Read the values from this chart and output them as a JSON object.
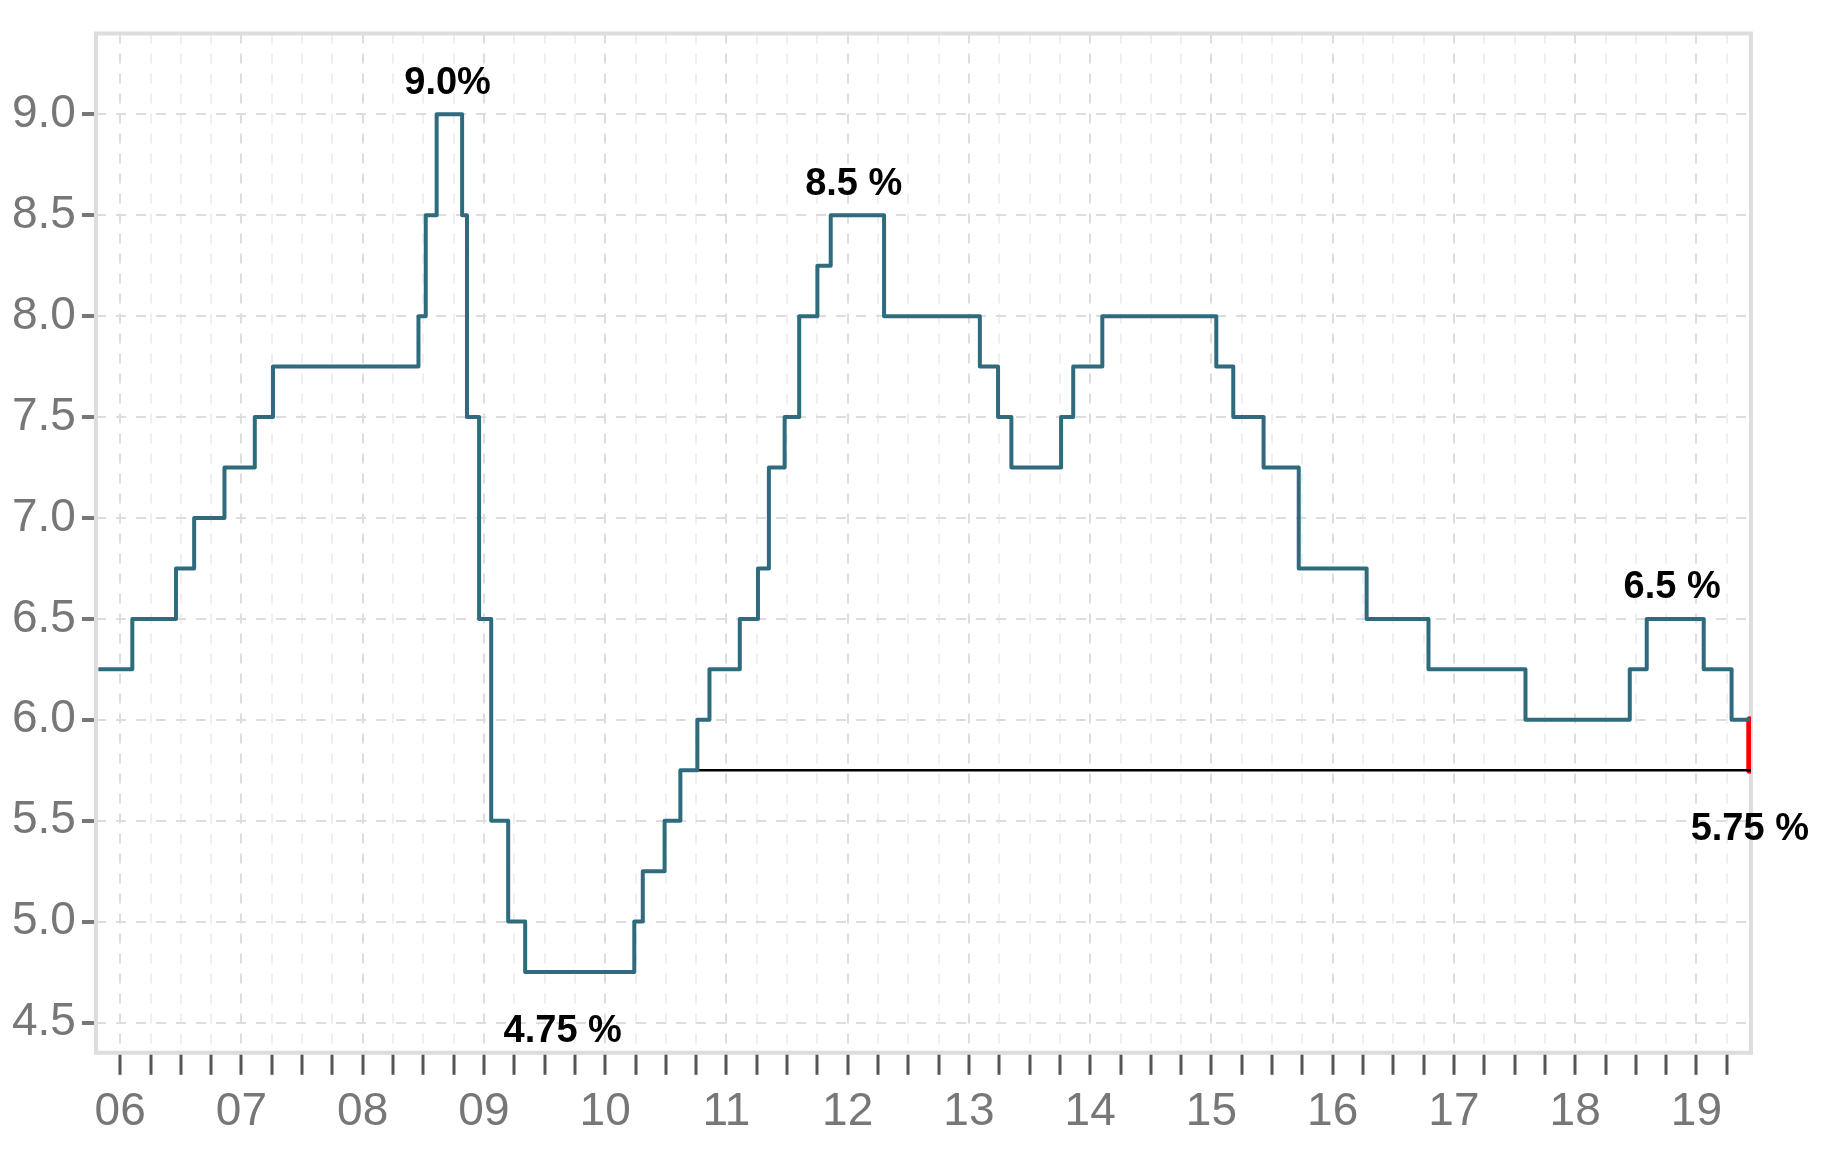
{
  "chart_data": {
    "type": "step",
    "series": [
      {
        "type": "step",
        "color": "#2e6b7d",
        "x": [
          2005.82,
          2006.1,
          2006.46,
          2006.61,
          2006.86,
          2007.11,
          2007.26,
          2008.46,
          2008.52,
          2008.61,
          2008.82,
          2008.86,
          2008.96,
          2009.06,
          2009.2,
          2009.34,
          2010.24,
          2010.31,
          2010.49,
          2010.62,
          2010.76,
          2010.86,
          2011.11,
          2011.26,
          2011.35,
          2011.48,
          2011.6,
          2011.75,
          2011.86,
          2012.3,
          2013.09,
          2013.24,
          2013.35,
          2013.76,
          2013.86,
          2014.1,
          2015.04,
          2015.18,
          2015.43,
          2015.72,
          2016.28,
          2016.79,
          2017.59,
          2018.45,
          2018.59,
          2019.06,
          2019.29,
          2019.44
        ],
        "values": [
          6.25,
          6.5,
          6.75,
          7.0,
          7.25,
          7.5,
          7.75,
          8.0,
          8.5,
          9.0,
          8.5,
          7.5,
          6.5,
          5.5,
          5.0,
          4.75,
          5.0,
          5.25,
          5.5,
          5.75,
          6.0,
          6.25,
          6.5,
          6.75,
          7.25,
          7.5,
          8.0,
          8.25,
          8.5,
          8.0,
          7.75,
          7.5,
          7.25,
          7.5,
          7.75,
          8.0,
          7.75,
          7.5,
          7.25,
          6.75,
          6.5,
          6.25,
          6.0,
          6.25,
          6.5,
          6.25,
          6.0,
          6.0
        ]
      },
      {
        "type": "line",
        "color": "#000000",
        "x": [
          2010.76,
          2019.45
        ],
        "values": [
          5.75,
          5.75
        ]
      },
      {
        "type": "line",
        "color": "#ff0000",
        "x": [
          2019.44,
          2019.44
        ],
        "values": [
          6.0,
          5.75
        ]
      }
    ],
    "xlim": [
      2005.8,
      2019.45
    ],
    "xticks": [
      {
        "value": 2006,
        "label": "06"
      },
      {
        "value": 2006.25,
        "label": null
      },
      {
        "value": 2006.5,
        "label": null
      },
      {
        "value": 2006.75,
        "label": null
      },
      {
        "value": 2007,
        "label": "07"
      },
      {
        "value": 2007.25,
        "label": null
      },
      {
        "value": 2007.5,
        "label": null
      },
      {
        "value": 2007.75,
        "label": null
      },
      {
        "value": 2008,
        "label": "08"
      },
      {
        "value": 2008.25,
        "label": null
      },
      {
        "value": 2008.5,
        "label": null
      },
      {
        "value": 2008.75,
        "label": null
      },
      {
        "value": 2009,
        "label": "09"
      },
      {
        "value": 2009.25,
        "label": null
      },
      {
        "value": 2009.5,
        "label": null
      },
      {
        "value": 2009.75,
        "label": null
      },
      {
        "value": 2010,
        "label": "10"
      },
      {
        "value": 2010.25,
        "label": null
      },
      {
        "value": 2010.5,
        "label": null
      },
      {
        "value": 2010.75,
        "label": null
      },
      {
        "value": 2011,
        "label": "11"
      },
      {
        "value": 2011.25,
        "label": null
      },
      {
        "value": 2011.5,
        "label": null
      },
      {
        "value": 2011.75,
        "label": null
      },
      {
        "value": 2012,
        "label": "12"
      },
      {
        "value": 2012.25,
        "label": null
      },
      {
        "value": 2012.5,
        "label": null
      },
      {
        "value": 2012.75,
        "label": null
      },
      {
        "value": 2013,
        "label": "13"
      },
      {
        "value": 2013.25,
        "label": null
      },
      {
        "value": 2013.5,
        "label": null
      },
      {
        "value": 2013.75,
        "label": null
      },
      {
        "value": 2014,
        "label": "14"
      },
      {
        "value": 2014.25,
        "label": null
      },
      {
        "value": 2014.5,
        "label": null
      },
      {
        "value": 2014.75,
        "label": null
      },
      {
        "value": 2015,
        "label": "15"
      },
      {
        "value": 2015.25,
        "label": null
      },
      {
        "value": 2015.5,
        "label": null
      },
      {
        "value": 2015.75,
        "label": null
      },
      {
        "value": 2016,
        "label": "16"
      },
      {
        "value": 2016.25,
        "label": null
      },
      {
        "value": 2016.5,
        "label": null
      },
      {
        "value": 2016.75,
        "label": null
      },
      {
        "value": 2017,
        "label": "17"
      },
      {
        "value": 2017.25,
        "label": null
      },
      {
        "value": 2017.5,
        "label": null
      },
      {
        "value": 2017.75,
        "label": null
      },
      {
        "value": 2018,
        "label": "18"
      },
      {
        "value": 2018.25,
        "label": null
      },
      {
        "value": 2018.5,
        "label": null
      },
      {
        "value": 2018.75,
        "label": null
      },
      {
        "value": 2019,
        "label": "19"
      },
      {
        "value": 2019.25,
        "label": null
      }
    ],
    "ylim": [
      4.35,
      9.4
    ],
    "yticks": [
      {
        "value": 4.5,
        "label": "4.5"
      },
      {
        "value": 5,
        "label": "5.0"
      },
      {
        "value": 5.5,
        "label": "5.5"
      },
      {
        "value": 6,
        "label": "6.0"
      },
      {
        "value": 6.5,
        "label": "6.5"
      },
      {
        "value": 7,
        "label": "7.0"
      },
      {
        "value": 7.5,
        "label": "7.5"
      },
      {
        "value": 8,
        "label": "8.0"
      },
      {
        "value": 8.5,
        "label": "8.5"
      },
      {
        "value": 9,
        "label": "9.0"
      }
    ],
    "grid": true,
    "legend": false,
    "marker": "none",
    "annotations": [
      {
        "text": "9.0%",
        "x": 2008.7,
        "y": 9.0
      },
      {
        "text": "8.5 %",
        "x": 2012.05,
        "y": 8.5
      },
      {
        "text": "4.75 %",
        "x": 2009.65,
        "y": 4.75
      },
      {
        "text": "6.5 %",
        "x": 2018.8,
        "y": 6.5
      },
      {
        "text": "5.75 %",
        "x": 2019.44,
        "y": 5.75
      }
    ]
  }
}
